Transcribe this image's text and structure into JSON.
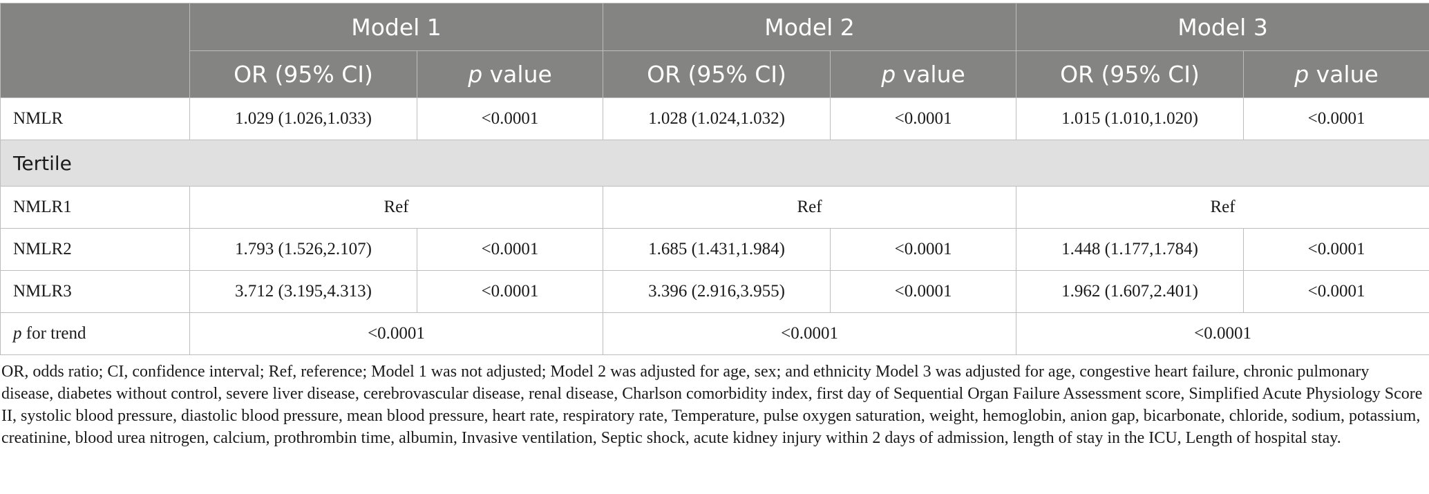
{
  "header": {
    "models": [
      "Model 1",
      "Model 2",
      "Model 3"
    ],
    "sub": {
      "or": "OR (95% CI)",
      "p_italic": "p",
      "p_rest": " value"
    }
  },
  "rows": {
    "nmlr": {
      "label": "NMLR",
      "m1_or": "1.029 (1.026,1.033)",
      "m1_p": "<0.0001",
      "m2_or": "1.028 (1.024,1.032)",
      "m2_p": "<0.0001",
      "m3_or": "1.015 (1.010,1.020)",
      "m3_p": "<0.0001"
    },
    "section": "Tertile",
    "nmlr1": {
      "label": "NMLR1",
      "m1": "Ref",
      "m2": "Ref",
      "m3": "Ref"
    },
    "nmlr2": {
      "label": "NMLR2",
      "m1_or": "1.793 (1.526,2.107)",
      "m1_p": "<0.0001",
      "m2_or": "1.685 (1.431,1.984)",
      "m2_p": "<0.0001",
      "m3_or": "1.448 (1.177,1.784)",
      "m3_p": "<0.0001"
    },
    "nmlr3": {
      "label": "NMLR3",
      "m1_or": "3.712 (3.195,4.313)",
      "m1_p": "<0.0001",
      "m2_or": "3.396 (2.916,3.955)",
      "m2_p": "<0.0001",
      "m3_or": "1.962 (1.607,2.401)",
      "m3_p": "<0.0001"
    },
    "trend": {
      "label_italic": "p",
      "label_rest": " for trend",
      "m1": "<0.0001",
      "m2": "<0.0001",
      "m3": "<0.0001"
    }
  },
  "footnote": "OR, odds ratio; CI, confidence interval; Ref, reference; Model 1 was not adjusted; Model 2 was adjusted for age, sex; and ethnicity Model 3 was adjusted for age, congestive heart failure, chronic pulmonary disease, diabetes without control, severe liver disease, cerebrovascular disease, renal disease, Charlson comorbidity index, first day of Sequential Organ Failure Assessment score, Simplified Acute Physiology Score II, systolic blood pressure, diastolic blood pressure, mean blood pressure, heart rate, respiratory rate, Temperature, pulse oxygen saturation, weight, hemoglobin, anion gap, bicarbonate, chloride, sodium, potassium, creatinine, blood urea nitrogen, calcium, prothrombin time, albumin, Invasive ventilation, Septic shock, acute kidney injury within 2 days of admission, length of stay in the ICU, Length of hospital stay."
}
